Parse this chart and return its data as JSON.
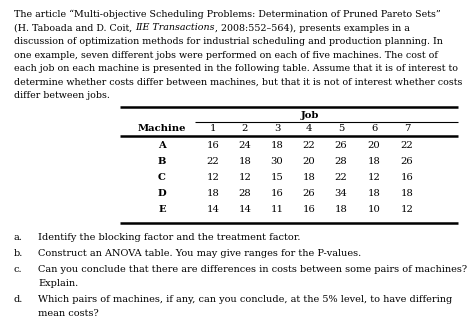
{
  "paragraph_lines": [
    "The article “Multi-objective Scheduling Problems: Determination of Pruned Pareto Sets”",
    "(H. Taboada and D. Coit, IIE Transactions, 2008:552–564), presents examples in a",
    "discussion of optimization methods for industrial scheduling and production planning. In",
    "one example, seven different jobs were performed on each of five machines. The cost of",
    "each job on each machine is presented in the following table. Assume that it is of interest to",
    "determine whether costs differ between machines, but that it is not of interest whether costs",
    "differ between jobs."
  ],
  "italic_marker": "IIE Transactions",
  "table_header_top": "Job",
  "table_col_headers": [
    "Machine",
    "1",
    "2",
    "3",
    "4",
    "5",
    "6",
    "7"
  ],
  "table_rows": [
    [
      "A",
      "16",
      "24",
      "18",
      "22",
      "26",
      "20",
      "22"
    ],
    [
      "B",
      "22",
      "18",
      "30",
      "20",
      "28",
      "18",
      "26"
    ],
    [
      "C",
      "12",
      "12",
      "15",
      "18",
      "22",
      "12",
      "16"
    ],
    [
      "D",
      "18",
      "28",
      "16",
      "26",
      "34",
      "18",
      "18"
    ],
    [
      "E",
      "14",
      "14",
      "11",
      "16",
      "18",
      "10",
      "12"
    ]
  ],
  "questions": [
    [
      "a.",
      "Identify the blocking factor and the treatment factor."
    ],
    [
      "b.",
      "Construct an ANOVA table. You may give ranges for the P-values."
    ],
    [
      "c.",
      "Can you conclude that there are differences in costs between some pairs of machines?",
      "Explain."
    ],
    [
      "d.",
      "Which pairs of machines, if any, can you conclude, at the 5% level, to have differing",
      "mean costs?"
    ]
  ],
  "bg_color": "#ffffff",
  "text_color": "#000000",
  "font_size_para": 6.8,
  "font_size_table": 7.2,
  "font_size_questions": 7.0
}
